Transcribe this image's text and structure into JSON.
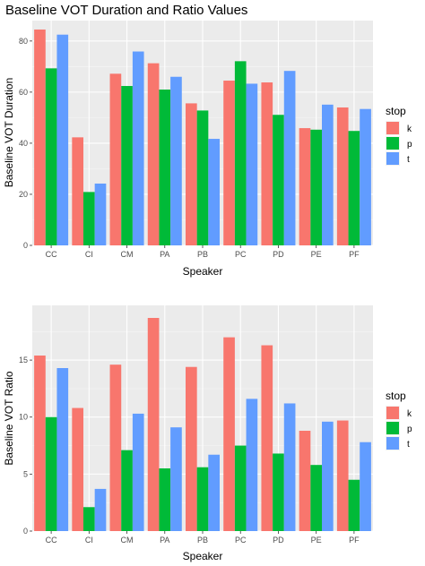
{
  "title": "Baseline VOT Duration and Ratio Values",
  "legend": {
    "title": "stop",
    "items": [
      {
        "label": "k",
        "color": "#F8766D"
      },
      {
        "label": "p",
        "color": "#00BA38"
      },
      {
        "label": "t",
        "color": "#619CFF"
      }
    ]
  },
  "chart_data": [
    {
      "type": "bar",
      "xlabel": "Speaker",
      "ylabel": "Baseline VOT Duration",
      "ylim": [
        0,
        88
      ],
      "yticks": [
        0,
        20,
        40,
        60,
        80
      ],
      "grid": true,
      "legend_position": "right",
      "categories": [
        "CC",
        "CI",
        "CM",
        "PA",
        "PB",
        "PC",
        "PD",
        "PE",
        "PF"
      ],
      "series": [
        {
          "name": "k",
          "color": "#F8766D",
          "values": [
            84.5,
            42.3,
            67.2,
            71.3,
            55.6,
            64.5,
            63.8,
            45.9,
            54.0
          ]
        },
        {
          "name": "p",
          "color": "#00BA38",
          "values": [
            69.3,
            20.9,
            62.4,
            61.0,
            52.8,
            72.1,
            51.1,
            45.3,
            44.8
          ]
        },
        {
          "name": "t",
          "color": "#619CFF",
          "values": [
            82.5,
            24.2,
            75.9,
            66.0,
            41.7,
            63.3,
            68.3,
            55.1,
            53.4
          ]
        }
      ]
    },
    {
      "type": "bar",
      "xlabel": "Speaker",
      "ylabel": "Baseline VOT Ratio",
      "ylim": [
        0,
        19.8
      ],
      "yticks": [
        0,
        5,
        10,
        15
      ],
      "grid": true,
      "legend_position": "right",
      "categories": [
        "CC",
        "CI",
        "CM",
        "PA",
        "PB",
        "PC",
        "PD",
        "PE",
        "PF"
      ],
      "series": [
        {
          "name": "k",
          "color": "#F8766D",
          "values": [
            15.4,
            10.8,
            14.6,
            18.7,
            14.4,
            17.0,
            16.3,
            8.8,
            9.7
          ]
        },
        {
          "name": "p",
          "color": "#00BA38",
          "values": [
            10.0,
            2.1,
            7.1,
            5.5,
            5.6,
            7.5,
            6.8,
            5.8,
            4.5
          ]
        },
        {
          "name": "t",
          "color": "#619CFF",
          "values": [
            14.3,
            3.7,
            10.3,
            9.1,
            6.7,
            11.6,
            11.2,
            9.6,
            7.8
          ]
        }
      ]
    }
  ]
}
